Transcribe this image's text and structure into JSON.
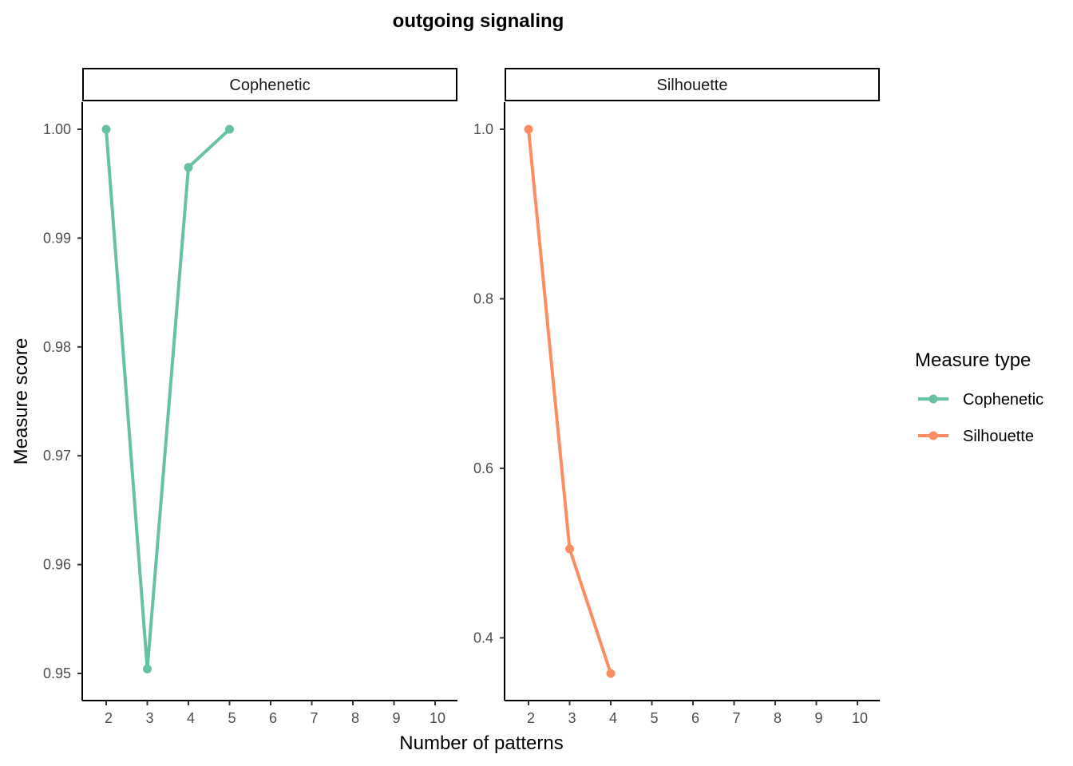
{
  "chart_data": {
    "type": "line",
    "title": "outgoing signaling",
    "xlabel": "Number of patterns",
    "ylabel": "Measure score",
    "legend": {
      "title": "Measure type",
      "placement": "right",
      "entries": [
        {
          "label": "Cophenetic",
          "color": "#66C2A5"
        },
        {
          "label": "Silhouette",
          "color": "#FC8D62"
        }
      ]
    },
    "x_ticks": [
      "2",
      "3",
      "4",
      "5",
      "6",
      "7",
      "8",
      "9",
      "10"
    ],
    "xlim": [
      2,
      10
    ],
    "grid": false,
    "panels": [
      {
        "strip": "Cophenetic",
        "color": "#66C2A5",
        "ylim": [
          0.95,
          1.0
        ],
        "y_ticks": [
          "0.95",
          "0.96",
          "0.97",
          "0.98",
          "0.99",
          "1.00"
        ],
        "y_tick_values": [
          0.95,
          0.96,
          0.97,
          0.98,
          0.99,
          1.0
        ],
        "series": [
          {
            "name": "Cophenetic",
            "x": [
              2,
              3,
              4,
              5
            ],
            "y": [
              1.0,
              0.9504,
              0.9965,
              1.0
            ]
          }
        ]
      },
      {
        "strip": "Silhouette",
        "color": "#FC8D62",
        "ylim": [
          0.358,
          1.0
        ],
        "y_ticks": [
          "0.4",
          "0.6",
          "0.8",
          "1.0"
        ],
        "y_tick_values": [
          0.4,
          0.6,
          0.8,
          1.0
        ],
        "series": [
          {
            "name": "Silhouette",
            "x": [
              2,
              3,
              4
            ],
            "y": [
              1.0,
              0.505,
              0.358
            ]
          }
        ]
      }
    ]
  }
}
